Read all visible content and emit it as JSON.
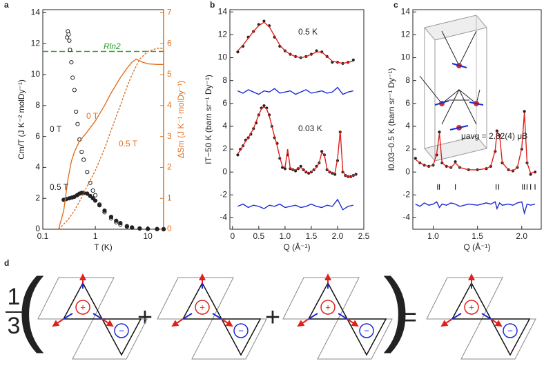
{
  "panel_labels": [
    "a",
    "b",
    "c",
    "d"
  ],
  "chart_data": [
    {
      "type": "line",
      "xlog": true,
      "xlim": [
        0.1,
        20
      ],
      "xticks": [
        0.1,
        1,
        10
      ],
      "ylim": [
        0,
        14.2
      ],
      "yticks": [
        0,
        2,
        4,
        6,
        8,
        10,
        12,
        14
      ],
      "y2lim": [
        0,
        7.1
      ],
      "y2ticks": [
        0,
        1,
        2,
        3,
        4,
        5,
        6,
        7
      ],
      "y2color": "#e07020",
      "xlabel": "T (K)",
      "ylabel": "Cm/T (J K⁻² molDy⁻¹)",
      "y2label": "ΔSm (J K⁻¹ molDy⁻¹)",
      "hlines": [
        {
          "y": 11.5,
          "color": "#2ca02c",
          "style": "dashed"
        }
      ],
      "annotations": [
        {
          "text": "Rln2",
          "color": "#2ca02c"
        },
        {
          "text": "0 T",
          "color": "#222222"
        },
        {
          "text": "0.5 T",
          "color": "#222222"
        },
        {
          "text": "0 T",
          "color": "#e07020"
        },
        {
          "text": "0.5 T",
          "color": "#e07020"
        }
      ],
      "series": [
        {
          "style": "open-circles",
          "color": "#222222",
          "x": [
            0.29,
            0.3,
            0.31,
            0.32,
            0.33,
            0.35,
            0.37,
            0.4,
            0.43,
            0.46,
            0.5,
            0.55,
            0.6,
            0.7,
            0.8,
            0.9,
            1,
            1.2,
            1.5,
            2,
            2.5,
            3,
            4,
            5,
            7,
            10,
            15,
            20
          ],
          "values": [
            12.4,
            12.8,
            12.6,
            12.2,
            11.6,
            10.8,
            9.8,
            9.0,
            7.6,
            6.8,
            5.8,
            5.0,
            4.5,
            3.7,
            3.0,
            2.5,
            2.2,
            1.6,
            1.1,
            0.7,
            0.45,
            0.3,
            0.17,
            0.1,
            0.05,
            0.02,
            0.01,
            0.0
          ]
        },
        {
          "style": "filled-circles",
          "color": "#222222",
          "x": [
            0.25,
            0.28,
            0.32,
            0.36,
            0.4,
            0.45,
            0.5,
            0.55,
            0.6,
            0.7,
            0.8,
            0.9,
            1,
            1.2,
            1.5,
            2,
            2.5,
            3,
            4,
            5,
            7,
            10,
            15,
            20
          ],
          "values": [
            1.9,
            1.95,
            2.0,
            2.05,
            2.1,
            2.2,
            2.3,
            2.35,
            2.35,
            2.3,
            2.15,
            2.0,
            1.85,
            1.55,
            1.2,
            0.8,
            0.55,
            0.4,
            0.2,
            0.12,
            0.05,
            0.02,
            0.01,
            0.0
          ]
        },
        {
          "style": "line",
          "color": "#e07020",
          "axis": "y2",
          "x": [
            0.2,
            0.25,
            0.3,
            0.35,
            0.4,
            0.5,
            0.7,
            1,
            1.5,
            2,
            3,
            4,
            5,
            6,
            8,
            10,
            15,
            20
          ],
          "values": [
            0,
            0.6,
            1.6,
            2.2,
            2.5,
            2.85,
            3.15,
            3.5,
            4.0,
            4.4,
            4.9,
            5.2,
            5.4,
            5.5,
            5.4,
            5.35,
            5.33,
            5.33
          ]
        },
        {
          "style": "dashed",
          "color": "#e07020",
          "axis": "y2",
          "x": [
            0.2,
            0.3,
            0.4,
            0.5,
            0.7,
            1,
            1.5,
            2,
            3,
            4,
            5,
            7,
            10,
            15,
            20
          ],
          "values": [
            0,
            0.3,
            0.6,
            0.9,
            1.4,
            1.9,
            2.6,
            3.2,
            4.0,
            4.6,
            5.0,
            5.5,
            5.75,
            5.85,
            5.85
          ]
        }
      ]
    },
    {
      "type": "line",
      "xlim": [
        -0.05,
        2.5
      ],
      "xticks": [
        0,
        0.5,
        {
          "value": 1,
          "label": "1.0"
        },
        1.5,
        {
          "value": 2,
          "label": "2.0"
        },
        2.5
      ],
      "ylim": [
        -5,
        14.2
      ],
      "yticks": [
        -4,
        -2,
        0,
        2,
        4,
        6,
        8,
        10,
        12,
        14
      ],
      "xlabel": "Q (Å⁻¹)",
      "ylabel": "IT−50 K (barn sr⁻¹ Dy⁻¹)",
      "annotations": [
        {
          "text": "0.5 K",
          "color": "#222222"
        },
        {
          "text": "0.03 K",
          "color": "#222222"
        }
      ],
      "series": [
        {
          "style": "points",
          "color": "#222222",
          "x": [
            0.1,
            0.2,
            0.3,
            0.4,
            0.5,
            0.6,
            0.7,
            0.8,
            0.9,
            1.0,
            1.1,
            1.2,
            1.3,
            1.4,
            1.5,
            1.6,
            1.7,
            1.8,
            1.9,
            2.0,
            2.1,
            2.2,
            2.3
          ],
          "values": [
            10.5,
            11,
            11.8,
            12.3,
            12.9,
            13.2,
            12.8,
            11.8,
            11,
            10.6,
            10.3,
            10.1,
            10.0,
            10.1,
            10.3,
            10.6,
            10.5,
            10.1,
            9.6,
            9.6,
            9.5,
            9.6,
            9.8
          ]
        },
        {
          "style": "line",
          "color": "#e0201b",
          "x": [
            0.1,
            0.2,
            0.3,
            0.4,
            0.5,
            0.6,
            0.7,
            0.8,
            0.9,
            1.0,
            1.1,
            1.2,
            1.3,
            1.4,
            1.5,
            1.6,
            1.7,
            1.8,
            1.9,
            2.0,
            2.1,
            2.2,
            2.3
          ],
          "values": [
            10.6,
            11.1,
            11.7,
            12.3,
            12.8,
            13.1,
            12.7,
            11.9,
            11.1,
            10.6,
            10.3,
            10.1,
            10.0,
            10.1,
            10.3,
            10.5,
            10.5,
            10.1,
            9.7,
            9.6,
            9.5,
            9.6,
            9.7
          ]
        },
        {
          "style": "line",
          "color": "#1a2ad6",
          "x": [
            0.1,
            0.2,
            0.3,
            0.4,
            0.5,
            0.6,
            0.7,
            0.8,
            0.9,
            1.0,
            1.1,
            1.2,
            1.3,
            1.4,
            1.5,
            1.6,
            1.7,
            1.8,
            1.9,
            2.0,
            2.1,
            2.2,
            2.3
          ],
          "values": [
            7.1,
            6.9,
            7.2,
            7.0,
            6.8,
            7.1,
            7.0,
            7.3,
            6.9,
            7.0,
            7.1,
            6.8,
            7.0,
            7.2,
            6.9,
            7.0,
            7.1,
            6.9,
            7.0,
            7.4,
            6.8,
            7.0,
            7.1
          ]
        },
        {
          "style": "points",
          "color": "#222222",
          "x": [
            0.1,
            0.15,
            0.2,
            0.25,
            0.3,
            0.35,
            0.4,
            0.45,
            0.5,
            0.55,
            0.6,
            0.65,
            0.7,
            0.75,
            0.8,
            0.85,
            0.9,
            0.95,
            1.0,
            1.05,
            1.1,
            1.15,
            1.2,
            1.25,
            1.3,
            1.35,
            1.4,
            1.45,
            1.5,
            1.55,
            1.6,
            1.65,
            1.7,
            1.75,
            1.8,
            1.85,
            1.9,
            1.95,
            2.0,
            2.05,
            2.1,
            2.15,
            2.2,
            2.25,
            2.3,
            2.35
          ],
          "values": [
            1.5,
            2.0,
            2.3,
            2.8,
            3.0,
            3.3,
            3.8,
            4.3,
            5.0,
            5.6,
            5.8,
            5.6,
            5.0,
            4.0,
            3.0,
            2.5,
            1.2,
            0.4,
            0.3,
            1.5,
            0.3,
            0.2,
            0.1,
            0.3,
            0.5,
            0.2,
            0.0,
            -0.1,
            0.0,
            0.2,
            0.5,
            0.8,
            1.8,
            1.5,
            0.2,
            0.0,
            -0.1,
            -0.2,
            1.0,
            3.5,
            0.0,
            -0.3,
            -0.4,
            -0.4,
            -0.3,
            -0.2
          ]
        },
        {
          "style": "line",
          "color": "#e0201b",
          "x": [
            0.1,
            0.15,
            0.2,
            0.25,
            0.3,
            0.35,
            0.4,
            0.45,
            0.5,
            0.55,
            0.6,
            0.65,
            0.7,
            0.75,
            0.8,
            0.85,
            0.9,
            0.95,
            1.0,
            1.05,
            1.1,
            1.15,
            1.2,
            1.25,
            1.3,
            1.35,
            1.4,
            1.45,
            1.5,
            1.55,
            1.6,
            1.65,
            1.7,
            1.75,
            1.8,
            1.85,
            1.9,
            1.95,
            2.0,
            2.05,
            2.1,
            2.15,
            2.2,
            2.25,
            2.3,
            2.35
          ],
          "values": [
            1.6,
            1.9,
            2.3,
            2.7,
            3.0,
            3.4,
            3.8,
            4.4,
            5.0,
            5.5,
            5.7,
            5.5,
            4.9,
            4.0,
            3.1,
            2.3,
            1.3,
            0.5,
            0.4,
            2.0,
            0.3,
            0.2,
            0.2,
            0.3,
            0.4,
            0.2,
            0.0,
            -0.1,
            0.0,
            0.2,
            0.4,
            0.8,
            1.7,
            1.5,
            0.3,
            0.0,
            -0.1,
            -0.1,
            1.2,
            3.6,
            0.1,
            -0.3,
            -0.4,
            -0.4,
            -0.3,
            -0.2
          ]
        },
        {
          "style": "line",
          "color": "#1a2ad6",
          "x": [
            0.1,
            0.2,
            0.3,
            0.4,
            0.5,
            0.6,
            0.7,
            0.8,
            0.9,
            1.0,
            1.1,
            1.2,
            1.3,
            1.4,
            1.5,
            1.6,
            1.7,
            1.8,
            1.9,
            2.0,
            2.1,
            2.2,
            2.3
          ],
          "values": [
            -3.0,
            -2.8,
            -3.1,
            -2.9,
            -3.0,
            -3.2,
            -2.9,
            -3.0,
            -2.8,
            -3.1,
            -3.0,
            -2.9,
            -3.1,
            -3.0,
            -2.8,
            -3.0,
            -3.1,
            -2.9,
            -3.0,
            -2.4,
            -3.3,
            -3.0,
            -2.9
          ]
        }
      ]
    },
    {
      "type": "line",
      "xlim": [
        0.77,
        2.22
      ],
      "xticks": [
        {
          "value": 1,
          "label": "1.0"
        },
        1.5,
        {
          "value": 2,
          "label": "2.0"
        }
      ],
      "ylim": [
        -5,
        14.2
      ],
      "yticks": [
        -4,
        -2,
        0,
        2,
        4,
        6,
        8,
        10,
        12,
        14
      ],
      "xlabel": "Q (Å⁻¹)",
      "ylabel": "I0.03−0.5 K (barn sr⁻¹ Dy⁻¹)",
      "annotations": [
        {
          "text": "μavg = 2.82(4) μB",
          "color": "#222222"
        }
      ],
      "bragg_positions": [
        1.05,
        1.07,
        1.25,
        1.71,
        1.74,
        2.01,
        2.03,
        2.06,
        2.1,
        2.15
      ],
      "bragg_y": -1.3,
      "series": [
        {
          "style": "points",
          "color": "#222222",
          "x": [
            0.8,
            0.85,
            0.9,
            0.95,
            1.0,
            1.04,
            1.07,
            1.1,
            1.15,
            1.2,
            1.25,
            1.3,
            1.4,
            1.5,
            1.6,
            1.65,
            1.7,
            1.72,
            1.75,
            1.78,
            1.85,
            1.9,
            1.95,
            2.0,
            2.03,
            2.06,
            2.1,
            2.15
          ],
          "values": [
            1.2,
            0.8,
            0.6,
            0.5,
            0.6,
            1.5,
            3.5,
            0.8,
            0.5,
            0.4,
            0.9,
            0.4,
            0.2,
            0.2,
            0.3,
            0.5,
            1.8,
            3.6,
            3.2,
            0.8,
            0.2,
            0.1,
            0.4,
            2.0,
            5.3,
            0.8,
            -0.2,
            0.0
          ]
        },
        {
          "style": "line",
          "color": "#e0201b",
          "x": [
            0.8,
            0.85,
            0.9,
            0.95,
            1.0,
            1.04,
            1.07,
            1.1,
            1.15,
            1.2,
            1.25,
            1.3,
            1.4,
            1.5,
            1.6,
            1.65,
            1.7,
            1.72,
            1.75,
            1.78,
            1.85,
            1.9,
            1.95,
            2.0,
            2.03,
            2.06,
            2.1,
            2.15
          ],
          "values": [
            1.1,
            0.8,
            0.6,
            0.5,
            0.6,
            1.6,
            3.4,
            0.8,
            0.5,
            0.4,
            0.8,
            0.4,
            0.2,
            0.2,
            0.3,
            0.5,
            1.9,
            3.5,
            3.2,
            0.8,
            0.2,
            0.1,
            0.4,
            2.1,
            5.2,
            0.8,
            -0.1,
            0.0
          ]
        },
        {
          "style": "line",
          "color": "#1a2ad6",
          "x": [
            0.8,
            0.85,
            0.9,
            0.95,
            1.0,
            1.04,
            1.07,
            1.1,
            1.15,
            1.2,
            1.25,
            1.3,
            1.4,
            1.5,
            1.6,
            1.65,
            1.7,
            1.72,
            1.75,
            1.78,
            1.85,
            1.9,
            1.95,
            2.0,
            2.03,
            2.06,
            2.1,
            2.15
          ],
          "values": [
            -2.8,
            -3.0,
            -2.7,
            -2.9,
            -2.8,
            -2.6,
            -3.1,
            -2.8,
            -2.9,
            -2.7,
            -2.8,
            -3.0,
            -2.8,
            -2.9,
            -2.7,
            -2.8,
            -2.6,
            -3.2,
            -2.7,
            -2.9,
            -2.8,
            -2.9,
            -2.7,
            -2.6,
            -3.6,
            -2.8,
            -2.9,
            -2.8
          ]
        }
      ]
    }
  ],
  "diagram": {
    "fraction_numerator": "1",
    "fraction_denominator": "3",
    "parens": [
      "(",
      ")"
    ],
    "operators": [
      "+",
      "+",
      "="
    ],
    "plus": "+",
    "minus": "−"
  }
}
